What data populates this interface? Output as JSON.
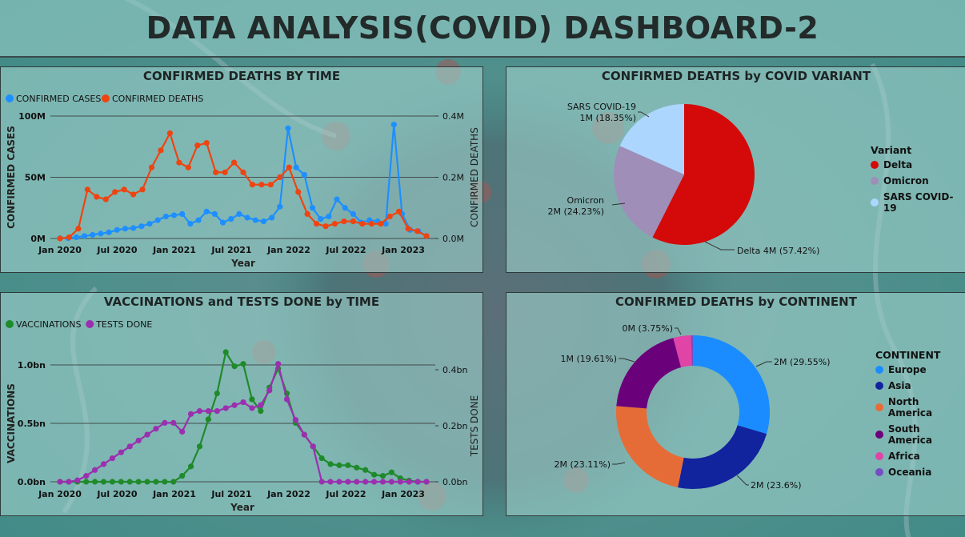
{
  "dashboard": {
    "title": "DATA ANALYSIS(COVID) DASHBOARD-2"
  },
  "chart_data": [
    {
      "id": "deaths_by_time",
      "type": "line",
      "title": "CONFIRMED DEATHS BY TIME",
      "xlabel": "Year",
      "ylabel_left": "CONFIRMED CASES",
      "ylabel_right": "CONFIRMED DEATHS",
      "x_ticks": [
        "Jan 2020",
        "Jul 2020",
        "Jan 2021",
        "Jul 2021",
        "Jan 2022",
        "Jul 2022",
        "Jan 2023"
      ],
      "y_left_ticks": [
        "0M",
        "50M",
        "100M"
      ],
      "y_right_ticks": [
        "0.0M",
        "0.2M",
        "0.4M"
      ],
      "ylim_left": [
        0,
        100
      ],
      "ylim_right": [
        0,
        0.5
      ],
      "grid": true,
      "legend_position": "top-left",
      "series": [
        {
          "name": "CONFIRMED CASES",
          "axis": "left",
          "color": "#1e8fff",
          "values": [
            0.2,
            0.3,
            1,
            2,
            3,
            4,
            5,
            7,
            8,
            8.5,
            10,
            12,
            15,
            18,
            19,
            20,
            12,
            15,
            22,
            20,
            13,
            16,
            20,
            17,
            15,
            14,
            17,
            26,
            90,
            58,
            52,
            25,
            16,
            18,
            32,
            25,
            20,
            13,
            15,
            14,
            12,
            93,
            20,
            7,
            6,
            2
          ]
        },
        {
          "name": "CONFIRMED DEATHS",
          "axis": "right",
          "color": "#ee4411",
          "values": [
            0,
            0.005,
            0.04,
            0.2,
            0.17,
            0.16,
            0.19,
            0.2,
            0.18,
            0.2,
            0.29,
            0.36,
            0.43,
            0.31,
            0.29,
            0.38,
            0.39,
            0.27,
            0.27,
            0.31,
            0.27,
            0.22,
            0.22,
            0.22,
            0.25,
            0.29,
            0.19,
            0.1,
            0.06,
            0.05,
            0.06,
            0.07,
            0.07,
            0.06,
            0.06,
            0.06,
            0.09,
            0.11,
            0.04,
            0.03,
            0.01
          ]
        }
      ]
    },
    {
      "id": "deaths_by_variant",
      "type": "pie",
      "title": "CONFIRMED DEATHS by COVID VARIANT",
      "legend_title": "Variant",
      "legend_position": "right",
      "slices": [
        {
          "name": "Delta",
          "value": 57.42,
          "label": "Delta 4M (57.42%)",
          "color": "#d40a0a"
        },
        {
          "name": "Omicron",
          "value": 24.23,
          "label_line1": "Omicron",
          "label_line2": "2M (24.23%)",
          "color": "#9e8eb8"
        },
        {
          "name": "SARS COVID-19",
          "value": 18.35,
          "label_line1": "SARS COVID-19",
          "label_line2": "1M (18.35%)",
          "color": "#add6ff"
        }
      ]
    },
    {
      "id": "vacc_tests_by_time",
      "type": "line",
      "title": "VACCINATIONS and TESTS DONE by TIME",
      "xlabel": "Year",
      "ylabel_left": "VACCINATIONS",
      "ylabel_right": "TESTS DONE",
      "x_ticks": [
        "Jan 2020",
        "Jul 2020",
        "Jan 2021",
        "Jul 2021",
        "Jan 2022",
        "Jul 2022",
        "Jan 2023"
      ],
      "y_left_ticks": [
        "0.0bn",
        "0.5bn",
        "1.0bn"
      ],
      "y_right_ticks": [
        "0.0bn",
        "0.2bn",
        "0.4bn"
      ],
      "ylim_left": [
        0,
        1.1
      ],
      "ylim_right": [
        0,
        0.44
      ],
      "grid": true,
      "legend_position": "top-left",
      "series": [
        {
          "name": "VACCINATIONS",
          "axis": "left",
          "color": "#1f8a2a",
          "values": [
            0,
            0,
            0,
            0,
            0,
            0,
            0,
            0,
            0,
            0,
            0,
            0,
            0,
            0,
            0.05,
            0.13,
            0.3,
            0.53,
            0.75,
            1.1,
            0.98,
            1.0,
            0.7,
            0.6,
            0.8,
            0.96,
            0.75,
            0.5,
            0.4,
            0.3,
            0.2,
            0.15,
            0.14,
            0.14,
            0.12,
            0.1,
            0.06,
            0.05,
            0.08,
            0.03,
            0.01,
            0,
            0
          ]
        },
        {
          "name": "TESTS DONE",
          "axis": "right",
          "color": "#9b2fb0",
          "values": [
            0,
            0,
            0.005,
            0.02,
            0.04,
            0.06,
            0.08,
            0.1,
            0.12,
            0.14,
            0.16,
            0.18,
            0.2,
            0.2,
            0.17,
            0.23,
            0.24,
            0.24,
            0.24,
            0.25,
            0.26,
            0.27,
            0.25,
            0.26,
            0.31,
            0.4,
            0.28,
            0.21,
            0.16,
            0.12,
            0,
            0,
            0,
            0,
            0,
            0,
            0,
            0,
            0,
            0,
            0,
            0,
            0
          ]
        }
      ]
    },
    {
      "id": "deaths_by_continent",
      "type": "pie",
      "donut": true,
      "title": "CONFIRMED DEATHS by CONTINENT",
      "legend_title": "CONTINENT",
      "legend_position": "right",
      "slices": [
        {
          "name": "Europe",
          "value": 29.55,
          "label": "2M (29.55%)",
          "color": "#1a8cff"
        },
        {
          "name": "Asia",
          "value": 23.6,
          "label": "2M (23.6%)",
          "color": "#12239e"
        },
        {
          "name": "North America",
          "value": 23.11,
          "label": "2M (23.11%)",
          "color": "#e66c37"
        },
        {
          "name": "South America",
          "value": 19.61,
          "label": "1M (19.61%)",
          "color": "#6b007b"
        },
        {
          "name": "Africa",
          "value": 3.75,
          "label": "0M (3.75%)",
          "color": "#e044a7"
        },
        {
          "name": "Oceania",
          "value": 0.38,
          "label": "",
          "color": "#744ec2"
        }
      ]
    }
  ]
}
